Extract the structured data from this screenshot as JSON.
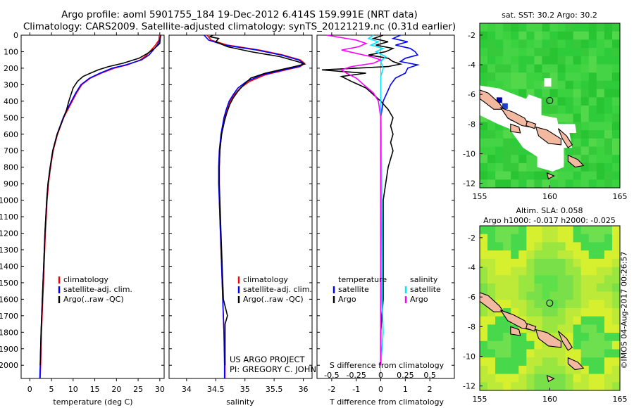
{
  "header": {
    "line1": "Argo profile: aoml 5901755_184 19-Dec-2012 6.414S 159.991E (NRT data)",
    "line2": "Climatology: CARS2009. Satellite-adjusted climatology: synTS_20121219.nc (0.31d earlier)"
  },
  "credit": {
    "line1": "US ARGO PROJECT",
    "line2": "PI: GREGORY C. JOHNSON"
  },
  "footer": "©IMOS 04-Aug-2017 00:26:57",
  "colors": {
    "climatology": "#ff0000",
    "satellite": "#0000ff",
    "argo": "#000000",
    "salinity_satellite": "#00e5ff",
    "salinity_argo": "#ff00ff",
    "ocean_green": "#33cc33",
    "land": "#f2b8a0",
    "nodata": "#ffffff"
  },
  "chart_data": [
    {
      "type": "line",
      "id": "temperature",
      "xlabel": "temperature (deg C)",
      "ylabel": "",
      "xlim": [
        -2,
        31
      ],
      "ylim": [
        2080,
        0
      ],
      "xticks": [
        0,
        5,
        10,
        15,
        20,
        25,
        30
      ],
      "yticks": [
        0,
        100,
        200,
        300,
        400,
        500,
        600,
        700,
        800,
        900,
        1000,
        1100,
        1200,
        1300,
        1400,
        1500,
        1600,
        1700,
        1800,
        1900,
        2000
      ],
      "legend": [
        "climatology",
        "satellite-adj. clim.",
        "Argo(..raw -QC)"
      ],
      "series": [
        {
          "name": "climatology",
          "color": "#ff0000",
          "depth": [
            0,
            30,
            60,
            90,
            120,
            150,
            180,
            200,
            230,
            260,
            300,
            350,
            400,
            450,
            500,
            600,
            700,
            800,
            900,
            1000,
            1200,
            1400,
            1600,
            1800,
            2000,
            2080
          ],
          "values": [
            29.9,
            29.8,
            29.0,
            28.0,
            27.0,
            25.5,
            22.5,
            19.5,
            16.5,
            14.0,
            12.0,
            10.8,
            9.8,
            8.8,
            7.8,
            6.4,
            5.4,
            4.8,
            4.3,
            4.0,
            3.6,
            3.3,
            3.0,
            2.7,
            2.5,
            2.4
          ]
        },
        {
          "name": "satellite-adj. clim.",
          "color": "#0000ff",
          "depth": [
            0,
            30,
            60,
            90,
            120,
            150,
            180,
            200,
            230,
            260,
            300,
            350,
            400,
            450,
            500,
            600,
            700,
            800,
            900,
            1000,
            1200,
            1400,
            1600,
            1800,
            2000,
            2080
          ],
          "values": [
            30.2,
            30.0,
            29.4,
            28.5,
            27.5,
            25.8,
            22.2,
            19.0,
            16.2,
            13.8,
            11.8,
            10.6,
            9.6,
            8.6,
            7.7,
            6.3,
            5.3,
            4.7,
            4.2,
            3.9,
            3.5,
            3.2,
            2.9,
            2.6,
            2.4,
            2.3
          ]
        },
        {
          "name": "Argo(..raw -QC)",
          "color": "#000000",
          "depth": [
            0,
            20,
            50,
            80,
            110,
            140,
            170,
            190,
            210,
            230,
            250,
            280,
            320,
            360,
            400,
            450,
            500,
            600,
            700,
            800,
            900,
            1000,
            1200,
            1400,
            1600,
            1800,
            2000
          ],
          "values": [
            30.2,
            30.1,
            30.0,
            28.8,
            27.2,
            25.2,
            21.5,
            18.2,
            15.8,
            14.0,
            12.3,
            11.0,
            10.0,
            9.5,
            9.0,
            8.5,
            7.8,
            6.3,
            5.3,
            4.7,
            4.2,
            3.9,
            3.5,
            3.2,
            2.9,
            2.6,
            2.4
          ]
        }
      ]
    },
    {
      "type": "line",
      "id": "salinity",
      "xlabel": "salinity",
      "xlim": [
        33.7,
        36.15
      ],
      "ylim": [
        2080,
        0
      ],
      "xticks": [
        34,
        34.5,
        35,
        35.5,
        36
      ],
      "legend": [
        "climatology",
        "satellite-adj. clim.",
        "Argo(..raw -QC)"
      ],
      "series": [
        {
          "name": "climatology",
          "color": "#ff0000",
          "depth": [
            0,
            30,
            60,
            90,
            120,
            150,
            170,
            190,
            210,
            240,
            280,
            320,
            360,
            400,
            450,
            500,
            600,
            700,
            800,
            900,
            1000,
            1200,
            1400,
            1600,
            1800,
            2000,
            2080
          ],
          "values": [
            34.35,
            34.42,
            34.7,
            35.25,
            35.65,
            35.95,
            36.02,
            35.95,
            35.7,
            35.35,
            35.08,
            34.92,
            34.82,
            34.75,
            34.7,
            34.65,
            34.6,
            34.57,
            34.56,
            34.56,
            34.56,
            34.58,
            34.6,
            34.62,
            34.64,
            34.66,
            34.66
          ]
        },
        {
          "name": "satellite-adj. clim.",
          "color": "#0000ff",
          "depth": [
            0,
            30,
            60,
            90,
            120,
            150,
            170,
            190,
            210,
            240,
            280,
            320,
            360,
            400,
            450,
            500,
            600,
            700,
            800,
            900,
            1000,
            1200,
            1400,
            1600,
            1800,
            2000,
            2080
          ],
          "values": [
            34.3,
            34.38,
            34.65,
            35.2,
            35.62,
            35.92,
            36.0,
            35.93,
            35.66,
            35.3,
            35.03,
            34.88,
            34.8,
            34.73,
            34.68,
            34.64,
            34.59,
            34.56,
            34.55,
            34.55,
            34.56,
            34.58,
            34.6,
            34.62,
            34.64,
            34.65,
            34.65
          ]
        },
        {
          "name": "Argo(..raw -QC)",
          "color": "#000000",
          "depth": [
            0,
            10,
            20,
            40,
            70,
            100,
            130,
            160,
            175,
            190,
            210,
            230,
            260,
            300,
            340,
            380,
            420,
            470,
            520,
            600,
            700,
            800,
            900,
            1000,
            1200,
            1400,
            1600,
            1700,
            1750,
            1800,
            2000
          ],
          "values": [
            34.45,
            34.4,
            34.55,
            34.5,
            34.7,
            35.1,
            35.6,
            35.9,
            36.02,
            35.85,
            35.6,
            35.35,
            35.1,
            34.98,
            34.88,
            34.8,
            34.74,
            34.69,
            34.65,
            34.6,
            34.57,
            34.56,
            34.56,
            34.57,
            34.59,
            34.61,
            34.63,
            34.7,
            34.66,
            34.66,
            34.66
          ]
        }
      ]
    },
    {
      "type": "line",
      "id": "differences",
      "xlabel_top": "S difference from climatology",
      "xlabel_bottom": "T difference from climatology",
      "xlim": [
        -2.6,
        3.0
      ],
      "ylim": [
        2080,
        0
      ],
      "xticks_T": [
        -2,
        -1,
        0,
        1,
        2
      ],
      "xticks_S": [
        -0.5,
        -0.25,
        0,
        0.25,
        0.5
      ],
      "legend_temperature_title": "temperature",
      "legend_salinity_title": "salinity",
      "legend_temperature": [
        "satellite",
        "Argo"
      ],
      "legend_salinity": [
        "satellite",
        "Argo"
      ],
      "series": [
        {
          "name": "T satellite",
          "color": "#0000ff",
          "depth": [
            0,
            20,
            40,
            60,
            80,
            100,
            120,
            140,
            160,
            180,
            200,
            230,
            260,
            300,
            400,
            500,
            700,
            900,
            1200,
            1500,
            1800,
            2000
          ],
          "values": [
            0.8,
            0.5,
            1.1,
            0.6,
            1.2,
            1.4,
            1.5,
            1.0,
            0.8,
            1.5,
            1.1,
            1.0,
            0.6,
            0.4,
            0.1,
            0.0,
            0.0,
            0.0,
            0.0,
            0.0,
            0.0,
            0.0
          ]
        },
        {
          "name": "T Argo",
          "color": "#000000",
          "depth": [
            0,
            20,
            40,
            60,
            80,
            100,
            120,
            140,
            160,
            175,
            190,
            200,
            210,
            220,
            230,
            250,
            280,
            320,
            360,
            400,
            450,
            500,
            550,
            600,
            650,
            700,
            800,
            900,
            1000,
            1200,
            1400,
            1600,
            1800,
            2000
          ],
          "values": [
            0.1,
            -0.3,
            0.3,
            -0.2,
            0.5,
            0.2,
            -0.5,
            0.3,
            0.5,
            0.8,
            0.3,
            -1.0,
            -2.4,
            -1.6,
            -0.6,
            -1.6,
            -1.2,
            -0.6,
            -0.3,
            0.0,
            0.3,
            0.5,
            0.4,
            0.5,
            0.4,
            0.5,
            0.3,
            0.2,
            0.1,
            0.1,
            0.1,
            0.1,
            0.0,
            0.0
          ]
        },
        {
          "name": "S satellite",
          "color": "#00e5ff",
          "depth": [
            0,
            20,
            40,
            60,
            80,
            100,
            130,
            160,
            200,
            250,
            300,
            400,
            600,
            800,
            1000,
            1200,
            1400,
            1600,
            1800,
            1900,
            2000
          ],
          "values": [
            -0.3,
            -0.5,
            -0.1,
            -0.4,
            0.1,
            -0.2,
            0.2,
            0.0,
            0.1,
            0.0,
            0.0,
            0.0,
            0.02,
            0.03,
            0.04,
            0.05,
            0.06,
            0.05,
            0.1,
            0.05,
            0.0
          ]
        },
        {
          "name": "S Argo",
          "color": "#ff00ff",
          "depth": [
            0,
            15,
            30,
            50,
            70,
            90,
            110,
            130,
            150,
            170,
            190,
            210,
            230,
            260,
            300,
            350,
            400,
            500,
            700,
            900,
            1100,
            1400,
            1700,
            2000
          ],
          "values": [
            -2.2,
            -1.6,
            -1.0,
            -0.6,
            -0.9,
            -1.6,
            -1.0,
            -0.4,
            0.0,
            -0.3,
            -1.2,
            -1.6,
            -1.4,
            -1.0,
            -0.7,
            -0.3,
            -0.1,
            0.0,
            0.0,
            0.0,
            0.0,
            0.0,
            0.0,
            0.0
          ]
        }
      ]
    },
    {
      "type": "heatmap",
      "id": "sst_map",
      "title": "sat. SST: 30.2  Argo: 30.2",
      "xlim": [
        155,
        165
      ],
      "ylim": [
        -12.3,
        -1.2
      ],
      "xticks": [
        155,
        160,
        165
      ],
      "yticks": [
        -2,
        -4,
        -6,
        -8,
        -10,
        -12
      ],
      "argo_position": [
        159.991,
        -6.414
      ]
    },
    {
      "type": "heatmap",
      "id": "sla_map",
      "title_line1": "Altim. SLA: 0.058",
      "title_line2": "Argo h1000: -0.017 h2000: -0.025",
      "xlim": [
        155,
        165
      ],
      "ylim": [
        -12.3,
        -1.2
      ],
      "xticks": [
        155,
        160,
        165
      ],
      "yticks": [
        -2,
        -4,
        -6,
        -8,
        -10,
        -12
      ],
      "argo_position": [
        159.991,
        -6.414
      ]
    }
  ]
}
